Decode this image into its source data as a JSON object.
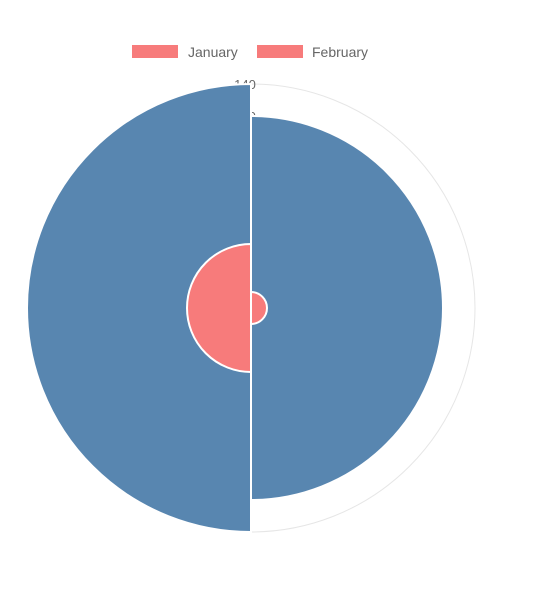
{
  "chart_data": {
    "type": "polarArea",
    "title": "",
    "legend_position": "top",
    "scale": {
      "min": 0,
      "max": 140,
      "step": 20
    },
    "visible_tick_labels": [
      "140",
      "120"
    ],
    "labels": [
      "January",
      "February"
    ],
    "series": [
      {
        "values": [
          10,
          40
        ],
        "color": "#f77b7b"
      },
      {
        "values": [
          120,
          140
        ],
        "color": "#5886b0"
      }
    ]
  }
}
